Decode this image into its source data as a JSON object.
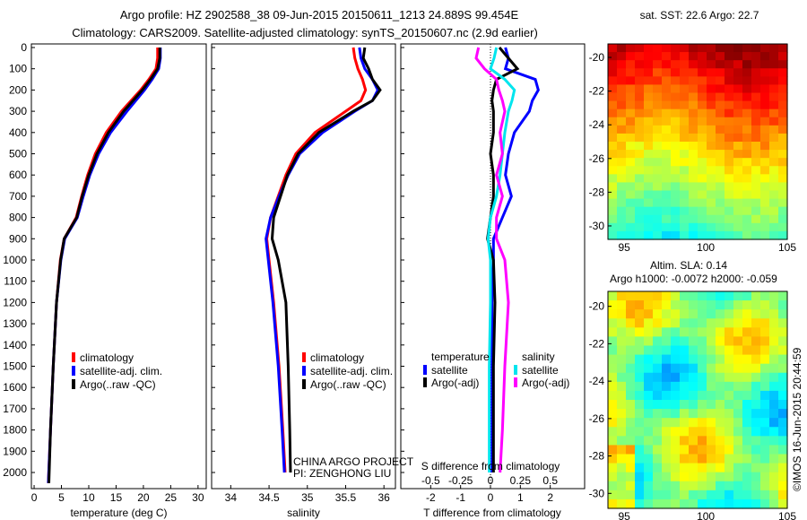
{
  "title_line1": "Argo profile: HZ 2902588_38 09-Jun-2015 20150611_1213 24.889S 99.454E",
  "title_line2": "Climatology: CARS2009. Satellite-adjusted climatology: synTS_20150607.nc (2.9d earlier)",
  "credit": "CHINA ARGO PROJECT",
  "pi": "PI: ZENGHONG LIU",
  "stamp": "©IMOS 16-Jun-2015 20:44:59",
  "colors": {
    "clim": "#ff0000",
    "sat": "#0000ff",
    "argo": "#000000",
    "s_sat": "#00e5ee",
    "s_argo": "#ff00ff"
  },
  "chart_data": [
    {
      "type": "line",
      "name": "temperature",
      "xlabel": "temperature (deg C)",
      "ylabel": "depth",
      "xlim": [
        -0.5,
        31.5
      ],
      "ylim": [
        2060,
        0
      ],
      "xticks": [
        0,
        5,
        10,
        15,
        20,
        25,
        30
      ],
      "yticks": [
        0,
        100,
        200,
        300,
        400,
        500,
        600,
        700,
        800,
        900,
        1000,
        1100,
        1200,
        1300,
        1400,
        1500,
        1600,
        1700,
        1800,
        1900,
        2000
      ],
      "legend": [
        "climatology",
        "satellite-adj. clim.",
        "Argo(..raw -QC)"
      ],
      "depth": [
        0,
        50,
        100,
        150,
        200,
        300,
        400,
        500,
        600,
        700,
        800,
        900,
        1000,
        1200,
        1500,
        1800,
        2050
      ],
      "series": [
        {
          "name": "climatology",
          "values": [
            22.6,
            22.6,
            22.3,
            21,
            19.5,
            16,
            13.2,
            11.2,
            9.8,
            8.7,
            7.7,
            5.5,
            4.8,
            4.1,
            3.5,
            3.0,
            2.6
          ]
        },
        {
          "name": "satellite-adj. clim.",
          "values": [
            23.1,
            23.1,
            22.8,
            21.6,
            20.2,
            17,
            14,
            11.8,
            10.2,
            9,
            7.9,
            5.6,
            4.9,
            4.1,
            3.5,
            3.0,
            2.6
          ]
        },
        {
          "name": "Argo(..raw -QC)",
          "values": [
            23.0,
            23.0,
            22.6,
            21.3,
            19.8,
            16.4,
            13.6,
            11.5,
            10.0,
            8.8,
            7.8,
            5.5,
            4.85,
            4.1,
            3.5,
            3.0,
            2.7
          ]
        }
      ]
    },
    {
      "type": "line",
      "name": "salinity",
      "xlabel": "salinity",
      "ylabel": "depth",
      "xlim": [
        33.75,
        36.15
      ],
      "ylim": [
        2060,
        0
      ],
      "xticks": [
        34,
        34.5,
        35,
        35.5,
        36
      ],
      "legend": [
        "climatology",
        "satellite-adj. clim.",
        "Argo(..raw -QC)"
      ],
      "depth": [
        0,
        50,
        100,
        150,
        200,
        250,
        300,
        400,
        500,
        600,
        700,
        800,
        900,
        1000,
        1200,
        1500,
        1800,
        2000
      ],
      "series": [
        {
          "name": "climatology",
          "values": [
            35.6,
            35.62,
            35.66,
            35.72,
            35.76,
            35.7,
            35.5,
            35.1,
            34.85,
            34.72,
            34.62,
            34.52,
            34.47,
            34.5,
            34.56,
            34.63,
            34.68,
            34.71
          ]
        },
        {
          "name": "satellite-adj. clim.",
          "values": [
            35.68,
            35.7,
            35.75,
            35.85,
            35.92,
            35.85,
            35.62,
            35.2,
            34.9,
            34.75,
            34.63,
            34.52,
            34.46,
            34.49,
            34.55,
            34.62,
            34.67,
            34.7
          ]
        },
        {
          "name": "Argo(..raw -QC)",
          "values": [
            35.75,
            35.73,
            35.8,
            35.85,
            35.95,
            35.85,
            35.6,
            35.15,
            34.88,
            34.74,
            34.65,
            34.56,
            34.54,
            34.62,
            34.72,
            34.75,
            34.77,
            34.78
          ]
        }
      ]
    },
    {
      "type": "line",
      "name": "differences",
      "xlabel": "T difference from climatology",
      "x2label": "S difference from climatology",
      "xlim": [
        -3,
        3.15
      ],
      "ylim": [
        2060,
        0
      ],
      "xticks": [
        -2,
        -1,
        0,
        1,
        2
      ],
      "x2ticks": [
        -0.5,
        -0.25,
        0,
        0.25,
        0.5
      ],
      "x2_labels": [
        "-0.5",
        "-0.25",
        "0",
        "0.25",
        "0.5"
      ],
      "legend_headers": [
        "temperature",
        "salinity"
      ],
      "legend": [
        "satellite",
        "Argo(-adj)",
        "satellite",
        "Argo(-adj)"
      ],
      "depth": [
        0,
        50,
        100,
        150,
        200,
        250,
        300,
        400,
        500,
        600,
        700,
        800,
        900,
        1000,
        1200,
        1500,
        1800,
        2000
      ],
      "series": [
        {
          "name": "T satellite",
          "axis": "T",
          "values": [
            0.5,
            0.6,
            0.5,
            1.5,
            1.6,
            1.4,
            1.3,
            0.8,
            0.6,
            0.5,
            0.7,
            0.4,
            0.1,
            0.1,
            0.05,
            0.05,
            0.05,
            0.05
          ]
        },
        {
          "name": "T Argo(-adj)",
          "axis": "T",
          "values": [
            0.3,
            0.6,
            0.9,
            0.2,
            0.1,
            0.05,
            0.1,
            0.1,
            0.0,
            0.1,
            0.1,
            0.0,
            -0.1,
            0.1,
            0.15,
            0.1,
            0.1,
            0.1
          ]
        },
        {
          "name": "S satellite",
          "axis": "S",
          "values": [
            0.05,
            0.03,
            0.0,
            0.12,
            0.2,
            0.18,
            0.15,
            0.12,
            0.1,
            0.08,
            0.05,
            0.0,
            -0.02,
            0.0,
            0.0,
            -0.01,
            -0.01,
            -0.01
          ]
        },
        {
          "name": "S Argo(-adj)",
          "axis": "S",
          "values": [
            -0.1,
            -0.12,
            -0.05,
            0.05,
            0.07,
            0.1,
            0.12,
            0.08,
            0.1,
            0.05,
            0.1,
            0.05,
            0.05,
            0.12,
            0.15,
            0.12,
            0.1,
            0.08
          ]
        }
      ]
    },
    {
      "type": "heatmap",
      "name": "sst-map",
      "title": "sat. SST: 22.6  Argo: 22.7",
      "xlim": [
        94,
        105
      ],
      "ylim": [
        -30.8,
        -19.2
      ],
      "xticks": [
        95,
        100,
        105
      ],
      "yticks": [
        -20,
        -22,
        -24,
        -26,
        -28,
        -30
      ],
      "marker": [
        99.454,
        -24.889
      ]
    },
    {
      "type": "heatmap",
      "name": "sla-map",
      "title": "Altim. SLA: 0.14",
      "subtitle": "Argo h1000: -0.0072 h2000: -0.059",
      "xlim": [
        94,
        105
      ],
      "ylim": [
        -30.8,
        -19.2
      ],
      "xticks": [
        95,
        100,
        105
      ],
      "yticks": [
        -20,
        -22,
        -24,
        -26,
        -28,
        -30
      ]
    }
  ]
}
